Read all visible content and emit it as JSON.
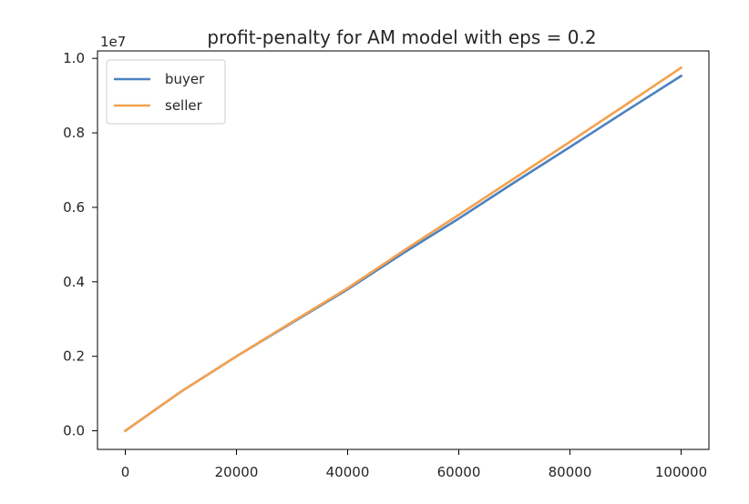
{
  "chart_data": {
    "type": "line",
    "title": "profit-penalty for AM model with eps = 0.2",
    "xlabel": "",
    "ylabel": "",
    "y_offset_label": "1e7",
    "xlim": [
      -5000,
      105000
    ],
    "ylim": [
      -0.05,
      1.02
    ],
    "x_ticks": [
      0,
      20000,
      40000,
      60000,
      80000,
      100000
    ],
    "x_tick_labels": [
      "0",
      "20000",
      "40000",
      "60000",
      "80000",
      "100000"
    ],
    "y_ticks": [
      0.0,
      0.2,
      0.4,
      0.6,
      0.8,
      1.0
    ],
    "y_tick_labels": [
      "0.0",
      "0.2",
      "0.4",
      "0.6",
      "0.8",
      "1.0"
    ],
    "grid": false,
    "legend_position": "top-left",
    "x": [
      0,
      10000,
      20000,
      30000,
      40000,
      50000,
      60000,
      70000,
      80000,
      90000,
      100000
    ],
    "series": [
      {
        "name": "buyer",
        "color": "#4c82c0",
        "values": [
          0.0,
          0.105,
          0.2,
          0.29,
          0.38,
          0.477,
          0.57,
          0.667,
          0.762,
          0.858,
          0.953
        ]
      },
      {
        "name": "seller",
        "color": "#f5a14f",
        "values": [
          0.0,
          0.105,
          0.2,
          0.292,
          0.383,
          0.483,
          0.58,
          0.678,
          0.776,
          0.875,
          0.975
        ]
      }
    ]
  }
}
